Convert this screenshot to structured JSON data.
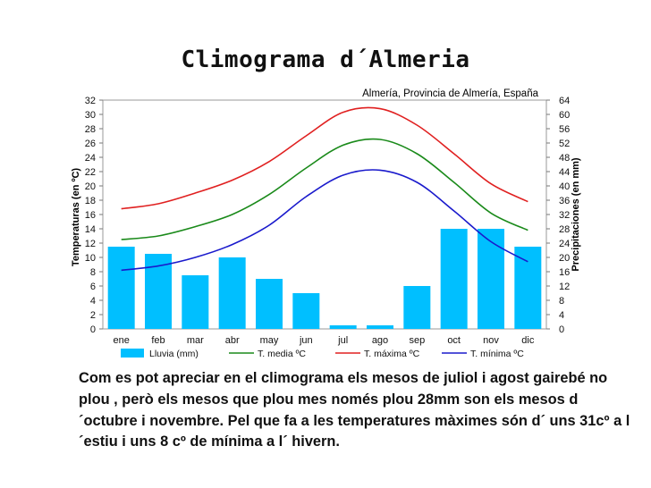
{
  "slide": {
    "title": "Climograma d´Almeria",
    "body": "Com es pot apreciar en el climograma els mesos de juliol i agost gairebé no plou , però els mesos que plou mes només plou 28mm son els mesos d´octubre i novembre. Pel que fa a les temperatures màximes són d´ uns 31cº a l´estiu i uns 8 cº de mínima a l´ hivern."
  },
  "chart_data": {
    "type": "bar+line",
    "title": "Almería, Provincia de Almería, España",
    "categories": [
      "ene",
      "feb",
      "mar",
      "abr",
      "may",
      "jun",
      "jul",
      "ago",
      "sep",
      "oct",
      "nov",
      "dic"
    ],
    "ylabel_left": "Temperaturas (en ºC)",
    "ylabel_right": "Precipitaciones (en mm)",
    "ylim_left": [
      0,
      32
    ],
    "ylim_right": [
      0,
      64
    ],
    "yticks_left": [
      0,
      2,
      4,
      6,
      8,
      10,
      12,
      14,
      16,
      18,
      20,
      22,
      24,
      26,
      28,
      30,
      32
    ],
    "yticks_right": [
      0,
      4,
      8,
      12,
      16,
      20,
      24,
      28,
      32,
      36,
      40,
      44,
      48,
      52,
      56,
      60,
      64
    ],
    "grid": false,
    "bars": {
      "name": "Lluvia (mm)",
      "color": "#00bfff",
      "axis": "right",
      "values": [
        23,
        21,
        15,
        20,
        14,
        10,
        1,
        1,
        12,
        28,
        28,
        23
      ]
    },
    "series": [
      {
        "name": "T. media ºC",
        "color": "#1a8a1a",
        "axis": "left",
        "values": [
          12.5,
          13.0,
          14.3,
          16.0,
          18.8,
          22.5,
          25.7,
          26.5,
          24.5,
          20.5,
          16.2,
          13.8
        ]
      },
      {
        "name": "T. máxima ºC",
        "color": "#e02020",
        "axis": "left",
        "values": [
          16.8,
          17.5,
          19.0,
          20.8,
          23.4,
          27.0,
          30.3,
          30.8,
          28.5,
          24.5,
          20.3,
          17.8
        ]
      },
      {
        "name": "T. mínima ºC",
        "color": "#1a1acc",
        "axis": "left",
        "values": [
          8.2,
          8.8,
          10.0,
          11.8,
          14.5,
          18.5,
          21.5,
          22.2,
          20.5,
          16.5,
          12.2,
          9.4
        ]
      }
    ],
    "legend": [
      "Lluvia (mm)",
      "T. media ºC",
      "T. máxima ºC",
      "T. mínima ºC"
    ],
    "legend_position": "bottom"
  }
}
